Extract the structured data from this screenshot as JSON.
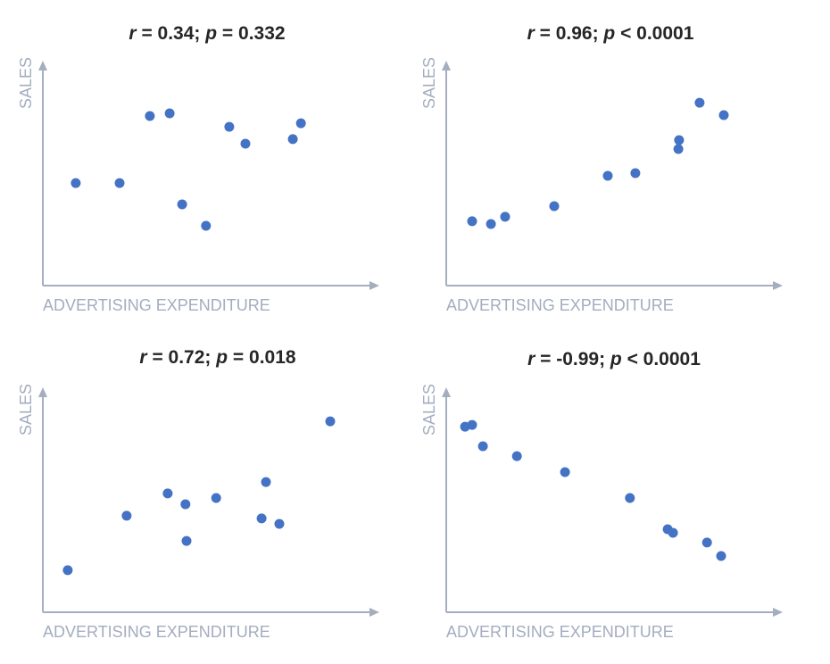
{
  "colors": {
    "point": "#4472C4",
    "axis": "#A5AEBF",
    "axis_label": "#A3ADBF",
    "title": "#262626"
  },
  "chart_data": [
    {
      "type": "scatter",
      "title": "r = 0.34; p = 0.332",
      "xlabel": "ADVERTISING EXPENDITURE",
      "ylabel": "SALES",
      "grid": false,
      "ticks": false,
      "xlim": [
        0,
        100
      ],
      "ylim": [
        0,
        100
      ],
      "x": [
        9.8,
        22.8,
        31.8,
        37.7,
        41.4,
        48.5,
        55.4,
        60.2,
        74.3,
        76.7
      ],
      "y": [
        45.6,
        45.6,
        75.4,
        76.6,
        36.1,
        26.6,
        70.6,
        63.1,
        65.1,
        72.2
      ]
    },
    {
      "type": "scatter",
      "title": "r = 0.96; p < 0.0001",
      "xlabel": "ADVERTISING EXPENDITURE",
      "ylabel": "SALES",
      "grid": false,
      "ticks": false,
      "xlim": [
        0,
        100
      ],
      "ylim": [
        0,
        100
      ],
      "x": [
        7.7,
        13.3,
        17.5,
        32.1,
        48.0,
        56.2,
        69.0,
        69.2,
        75.3,
        82.5
      ],
      "y": [
        28.6,
        27.4,
        30.6,
        35.3,
        48.8,
        50.0,
        60.7,
        64.7,
        81.3,
        75.8
      ]
    },
    {
      "type": "scatter",
      "title": "r = 0.72; p = 0.018",
      "xlabel": "ADVERTISING EXPENDITURE",
      "ylabel": "SALES",
      "grid": false,
      "ticks": false,
      "xlim": [
        0,
        100
      ],
      "ylim": [
        0,
        100
      ],
      "x": [
        7.4,
        24.9,
        37.1,
        42.4,
        42.7,
        51.5,
        66.3,
        65.0,
        70.3,
        85.4
      ],
      "y": [
        18.7,
        42.9,
        52.8,
        48.0,
        31.7,
        50.8,
        57.9,
        41.7,
        39.3,
        84.9
      ]
    },
    {
      "type": "scatter",
      "title": "r = -0.99; p < 0.0001",
      "xlabel": "ADVERTISING EXPENDITURE",
      "ylabel": "SALES",
      "grid": false,
      "ticks": false,
      "xlim": [
        0,
        100
      ],
      "ylim": [
        0,
        100
      ],
      "x": [
        5.6,
        7.7,
        10.9,
        21.0,
        35.3,
        54.6,
        65.8,
        67.4,
        77.5,
        81.7
      ],
      "y": [
        82.5,
        83.3,
        73.8,
        69.4,
        62.3,
        50.8,
        36.9,
        35.3,
        31.0,
        25.0
      ]
    }
  ]
}
